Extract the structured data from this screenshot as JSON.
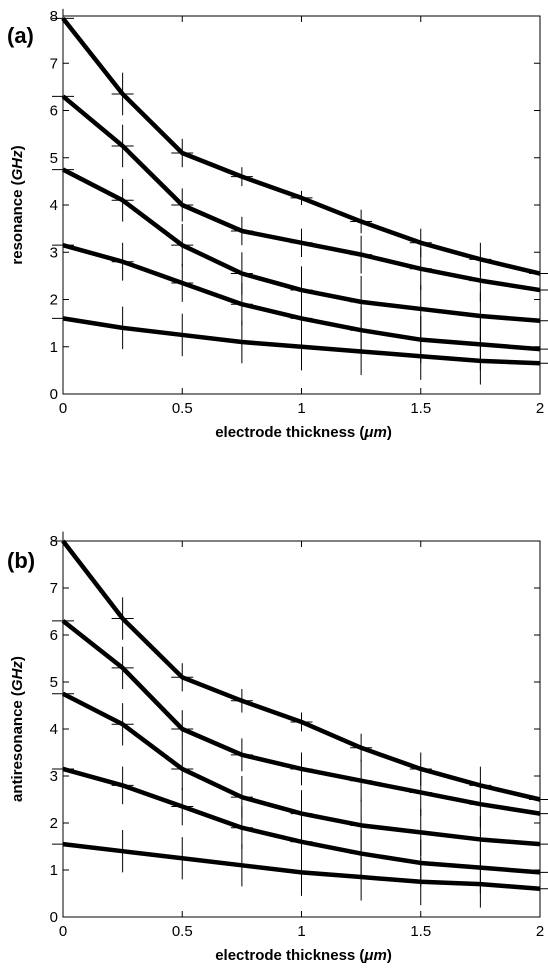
{
  "chart_data": [
    {
      "type": "line",
      "panel_label": "(a)",
      "xlabel": "electrode thickness (μm)",
      "xlabel_parts": [
        "electrode thickness (",
        "μm",
        ")"
      ],
      "ylabel": "resonance (GHz)",
      "ylabel_parts": [
        "resonance (",
        "GHz",
        ")"
      ],
      "xlim": [
        0,
        2
      ],
      "ylim": [
        0,
        8
      ],
      "xticks": [
        0,
        0.5,
        1,
        1.5,
        2
      ],
      "xtick_labels": [
        "0",
        "0.5",
        "1",
        "1.5",
        "2"
      ],
      "yticks": [
        0,
        1,
        2,
        3,
        4,
        5,
        6,
        7,
        8
      ],
      "ytick_labels": [
        "0",
        "1",
        "2",
        "3",
        "4",
        "5",
        "6",
        "7",
        "8"
      ],
      "grid": false,
      "line_color": "#000000",
      "x": [
        0,
        0.25,
        0.5,
        0.75,
        1,
        1.25,
        1.5,
        1.75,
        2
      ],
      "series": [
        {
          "values": [
            7.95,
            6.35,
            5.1,
            4.6,
            4.15,
            3.65,
            3.2,
            2.85,
            2.55
          ],
          "error": [
            0.2,
            0.45,
            0.3,
            0.2,
            0.15,
            0.25,
            0.3,
            0.35,
            0.35
          ]
        },
        {
          "values": [
            6.3,
            5.25,
            4.0,
            3.45,
            3.2,
            2.95,
            2.65,
            2.4,
            2.2
          ],
          "error": [
            0.2,
            0.45,
            0.35,
            0.3,
            0.3,
            0.4,
            0.45,
            0.45,
            0.45
          ]
        },
        {
          "values": [
            4.75,
            4.1,
            3.15,
            2.55,
            2.2,
            1.95,
            1.8,
            1.65,
            1.55
          ],
          "error": [
            0.2,
            0.45,
            0.45,
            0.45,
            0.5,
            0.55,
            0.5,
            0.5,
            0.45
          ]
        },
        {
          "values": [
            3.15,
            2.8,
            2.35,
            1.9,
            1.6,
            1.35,
            1.15,
            1.05,
            0.95
          ],
          "error": [
            0.2,
            0.4,
            0.4,
            0.45,
            0.5,
            0.5,
            0.5,
            0.55,
            0.55
          ]
        },
        {
          "values": [
            1.6,
            1.4,
            1.25,
            1.1,
            1.0,
            0.9,
            0.8,
            0.7,
            0.65
          ],
          "error": [
            0.2,
            0.45,
            0.45,
            0.45,
            0.5,
            0.5,
            0.5,
            0.5,
            0.5
          ]
        }
      ]
    },
    {
      "type": "line",
      "panel_label": "(b)",
      "xlabel": "electrode thickness (μm)",
      "xlabel_parts": [
        "electrode thickness (",
        "μm",
        ")"
      ],
      "ylabel": "antiresonance (GHz)",
      "ylabel_parts": [
        "antiresonance (",
        "GHz",
        ")"
      ],
      "xlim": [
        0,
        2
      ],
      "ylim": [
        0,
        8
      ],
      "xticks": [
        0,
        0.5,
        1,
        1.5,
        2
      ],
      "xtick_labels": [
        "0",
        "0.5",
        "1",
        "1.5",
        "2"
      ],
      "yticks": [
        0,
        1,
        2,
        3,
        4,
        5,
        6,
        7,
        8
      ],
      "ytick_labels": [
        "0",
        "1",
        "2",
        "3",
        "4",
        "5",
        "6",
        "7",
        "8"
      ],
      "grid": false,
      "line_color": "#000000",
      "x": [
        0,
        0.25,
        0.5,
        0.75,
        1,
        1.25,
        1.5,
        1.75,
        2
      ],
      "series": [
        {
          "values": [
            8.0,
            6.35,
            5.1,
            4.6,
            4.15,
            3.6,
            3.15,
            2.8,
            2.5
          ],
          "error": [
            0.2,
            0.45,
            0.3,
            0.25,
            0.2,
            0.3,
            0.35,
            0.4,
            0.35
          ]
        },
        {
          "values": [
            6.3,
            5.3,
            4.0,
            3.45,
            3.15,
            2.9,
            2.65,
            2.4,
            2.2
          ],
          "error": [
            0.2,
            0.45,
            0.4,
            0.35,
            0.35,
            0.45,
            0.5,
            0.5,
            0.45
          ]
        },
        {
          "values": [
            4.75,
            4.1,
            3.15,
            2.55,
            2.2,
            1.95,
            1.8,
            1.65,
            1.55
          ],
          "error": [
            0.2,
            0.45,
            0.45,
            0.45,
            0.5,
            0.55,
            0.5,
            0.5,
            0.45
          ]
        },
        {
          "values": [
            3.15,
            2.8,
            2.35,
            1.9,
            1.6,
            1.35,
            1.15,
            1.05,
            0.95
          ],
          "error": [
            0.2,
            0.4,
            0.4,
            0.45,
            0.5,
            0.5,
            0.5,
            0.55,
            0.55
          ]
        },
        {
          "values": [
            1.55,
            1.4,
            1.25,
            1.1,
            0.95,
            0.85,
            0.75,
            0.7,
            0.6
          ],
          "error": [
            0.2,
            0.45,
            0.45,
            0.45,
            0.5,
            0.5,
            0.5,
            0.5,
            0.5
          ]
        }
      ]
    }
  ]
}
